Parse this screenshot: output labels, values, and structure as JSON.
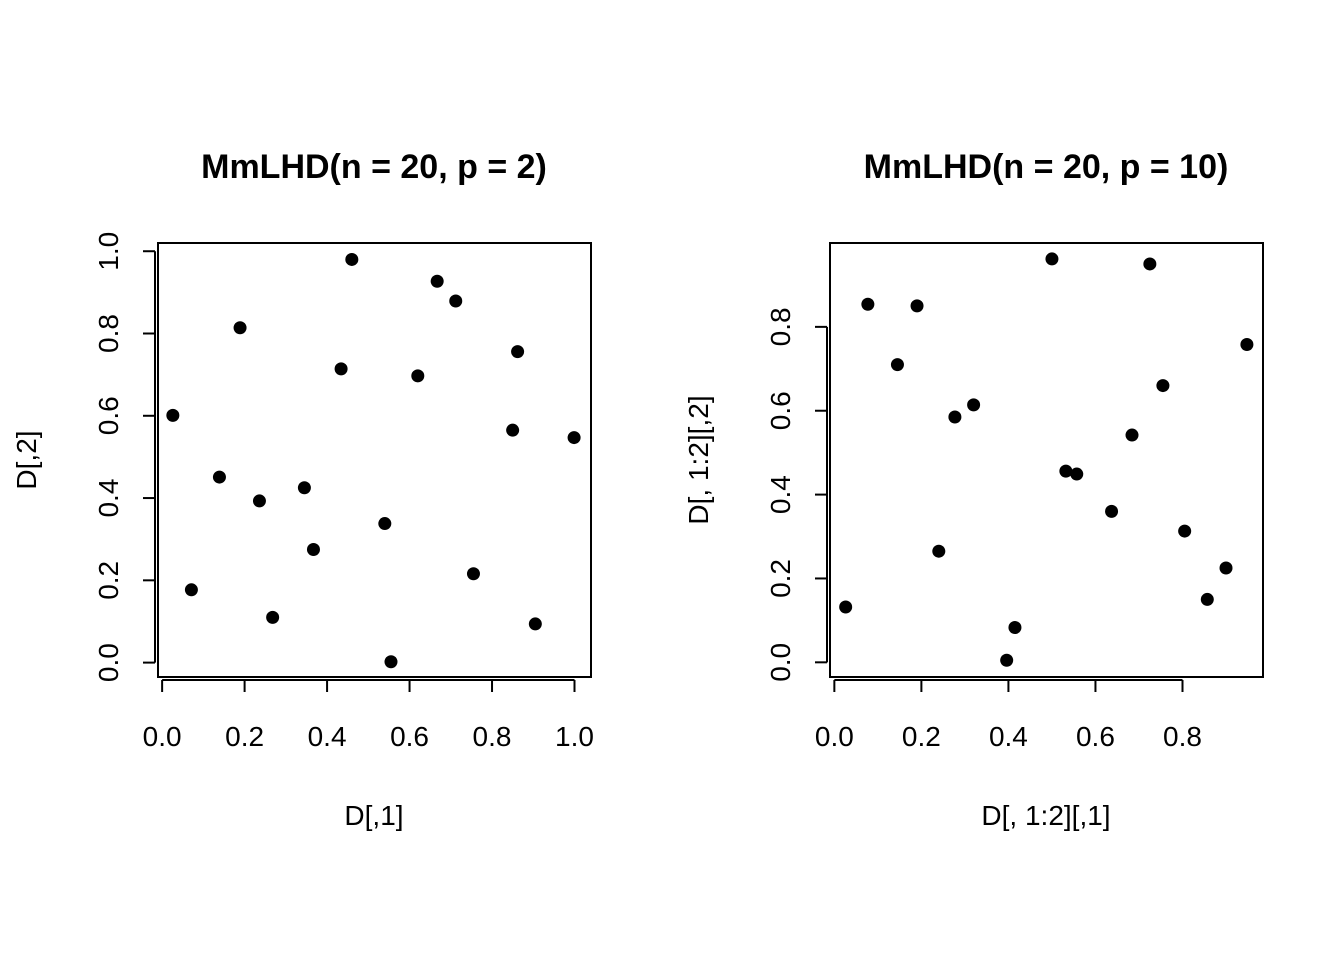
{
  "chart_data": [
    {
      "type": "scatter",
      "title": "MmLHD(n = 20, p = 2)",
      "xlabel": "D[,1]",
      "ylabel": "D[,2]",
      "xlim": [
        -0.01,
        1.04
      ],
      "ylim": [
        -0.035,
        1.02
      ],
      "xticks": [
        "0.0",
        "0.2",
        "0.4",
        "0.6",
        "0.8",
        "1.0"
      ],
      "xtick_values": [
        0,
        0.2,
        0.4,
        0.6,
        0.8,
        1.0
      ],
      "yticks": [
        "0.0",
        "0.2",
        "0.4",
        "0.6",
        "0.8",
        "1.0"
      ],
      "ytick_values": [
        0,
        0.2,
        0.4,
        0.6,
        0.8,
        1.0
      ],
      "x": [
        0.026,
        0.071,
        0.139,
        0.189,
        0.236,
        0.268,
        0.345,
        0.367,
        0.434,
        0.46,
        0.54,
        0.555,
        0.62,
        0.667,
        0.712,
        0.755,
        0.85,
        0.862,
        0.905,
        0.999
      ],
      "y": [
        0.601,
        0.177,
        0.451,
        0.814,
        0.393,
        0.11,
        0.425,
        0.275,
        0.714,
        0.98,
        0.338,
        0.002,
        0.697,
        0.927,
        0.879,
        0.216,
        0.565,
        0.756,
        0.094,
        0.547
      ]
    },
    {
      "type": "scatter",
      "title": "MmLHD(n = 20, p = 10)",
      "xlabel": "D[, 1:2][,1]",
      "ylabel": "D[, 1:2][,2]",
      "xlim": [
        -0.01,
        0.985
      ],
      "ylim": [
        -0.035,
        1.0
      ],
      "xticks": [
        "0.0",
        "0.2",
        "0.4",
        "0.6",
        "0.8"
      ],
      "xtick_values": [
        0,
        0.2,
        0.4,
        0.6,
        0.8
      ],
      "yticks": [
        "0.0",
        "0.2",
        "0.4",
        "0.6",
        "0.8"
      ],
      "ytick_values": [
        0,
        0.2,
        0.4,
        0.6,
        0.8
      ],
      "x": [
        0.026,
        0.077,
        0.145,
        0.19,
        0.24,
        0.277,
        0.32,
        0.396,
        0.415,
        0.5,
        0.532,
        0.557,
        0.637,
        0.684,
        0.725,
        0.755,
        0.805,
        0.857,
        0.9,
        0.948
      ],
      "y": [
        0.132,
        0.854,
        0.71,
        0.85,
        0.265,
        0.585,
        0.614,
        0.005,
        0.083,
        0.962,
        0.456,
        0.449,
        0.36,
        0.542,
        0.95,
        0.66,
        0.313,
        0.15,
        0.225,
        0.758
      ]
    }
  ]
}
